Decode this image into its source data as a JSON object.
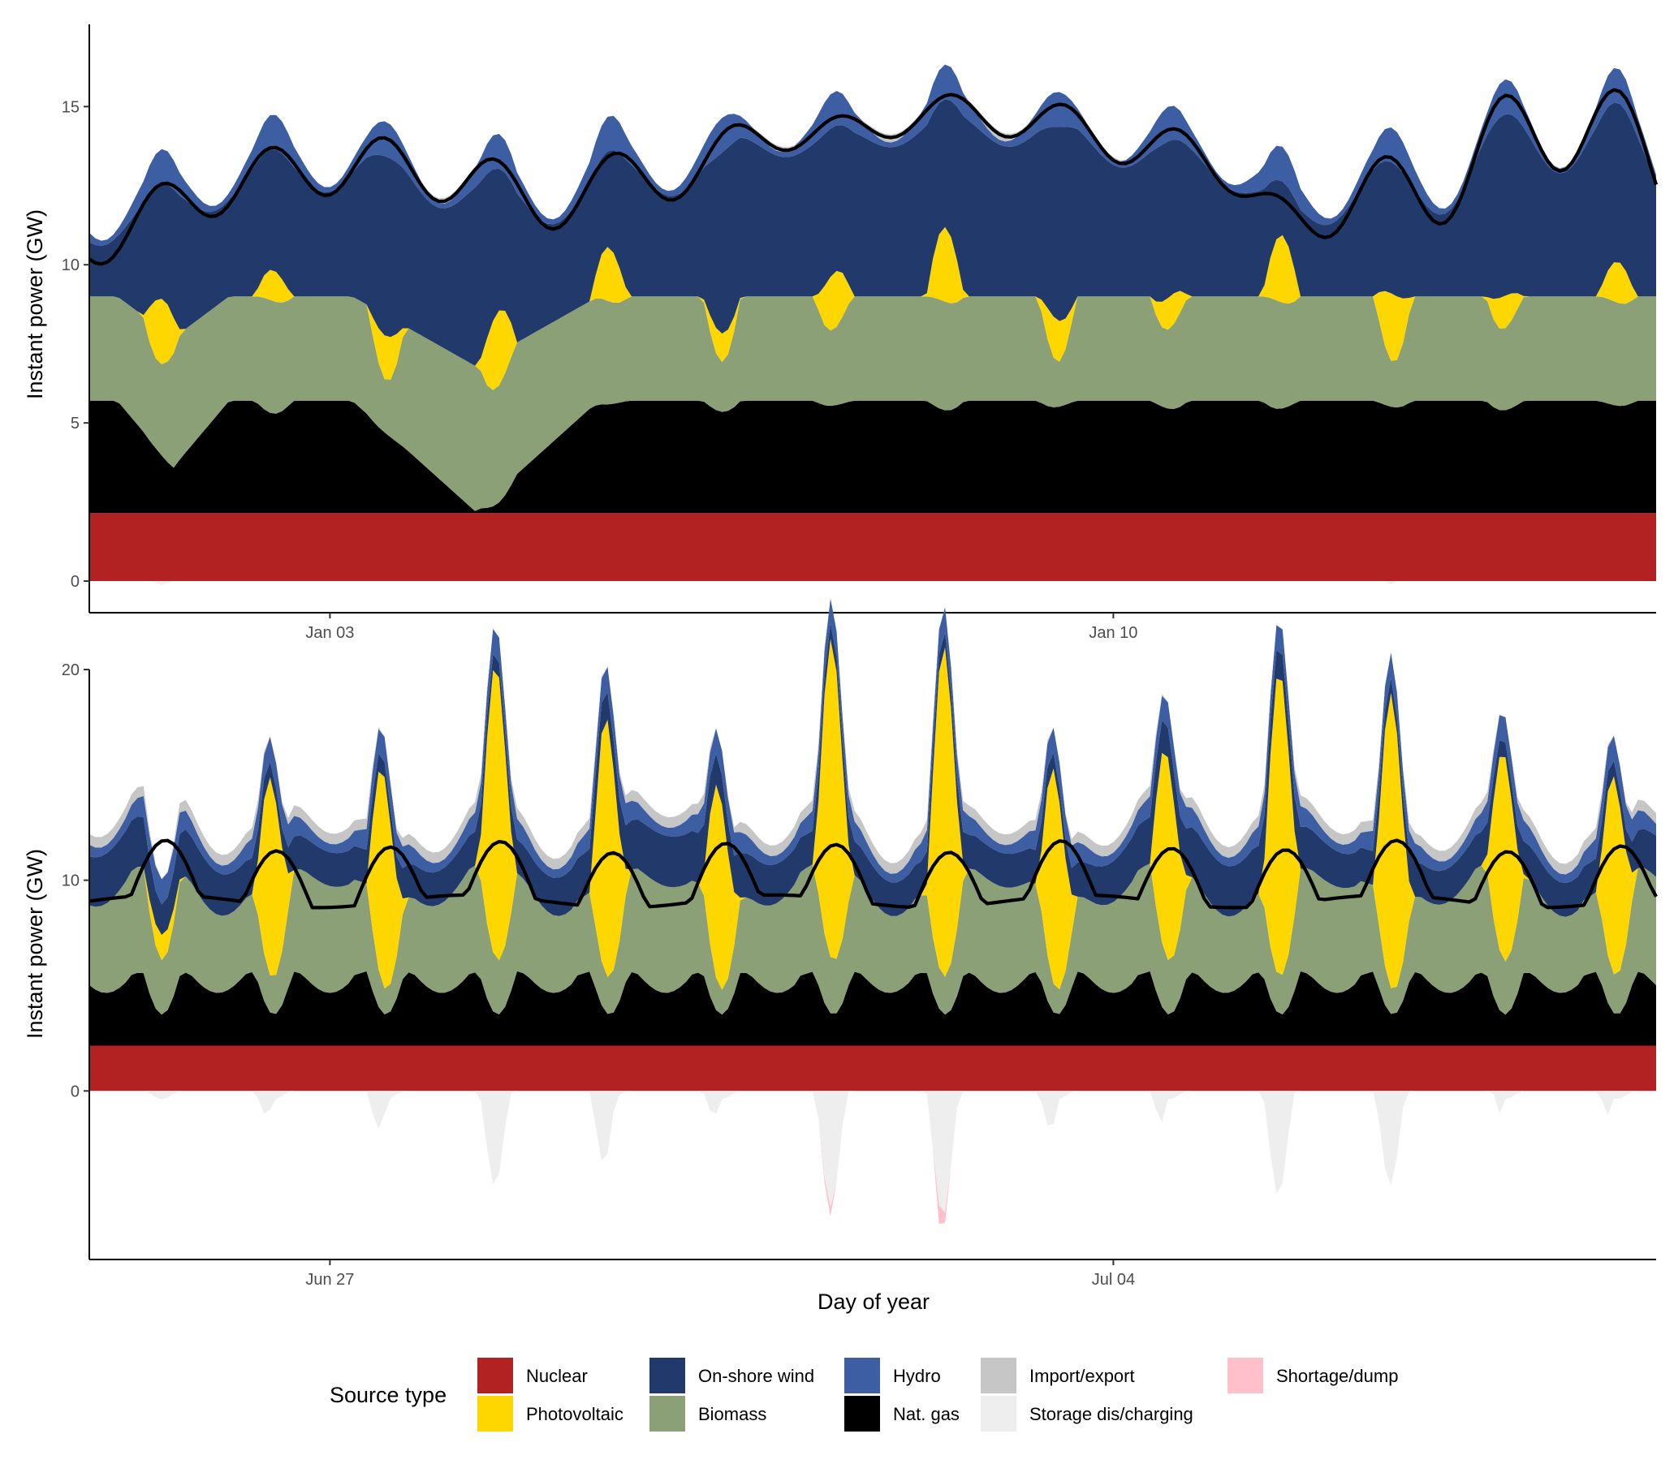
{
  "chart_data": [
    {
      "type": "area",
      "panel": "top",
      "title": "",
      "xlabel": "",
      "ylabel": "Instant power (GW)",
      "x_ticks": [
        {
          "label": "Jan 03",
          "day": 3.0
        },
        {
          "label": "Jan 10",
          "day": 10.0
        }
      ],
      "xlim": [
        0.85,
        14.85
      ],
      "y_ticks": [
        0,
        5,
        10,
        15
      ],
      "ylim": [
        -1.0,
        17.6
      ],
      "nuclear_gw": 2.15,
      "gas_cap_gw": 5.7,
      "biomass_cap_gw": 9.3,
      "events": [
        {
          "day": 1.3,
          "amp": 1.0,
          "w": 0.55
        },
        {
          "day": 2.25,
          "amp": 2.5,
          "w": 0.65
        },
        {
          "day": 3.25,
          "amp": 2.8,
          "w": 0.6
        },
        {
          "day": 4.2,
          "amp": 2.5,
          "w": 0.6
        },
        {
          "day": 5.1,
          "amp": 1.4,
          "w": 0.5
        },
        {
          "day": 5.85,
          "amp": 2.8,
          "w": 0.5
        },
        {
          "day": 6.9,
          "amp": 4.5,
          "w": 0.55
        },
        {
          "day": 7.95,
          "amp": 4.6,
          "w": 0.55
        },
        {
          "day": 8.9,
          "amp": 4.7,
          "w": 0.55
        },
        {
          "day": 9.85,
          "amp": 4.1,
          "w": 0.55
        },
        {
          "day": 10.85,
          "amp": 3.5,
          "w": 0.55
        },
        {
          "day": 12.3,
          "amp": 2.6,
          "w": 0.5
        },
        {
          "day": 13.5,
          "amp": 4.3,
          "w": 0.55
        },
        {
          "day": 14.5,
          "amp": 4.5,
          "w": 0.55
        }
      ]
    },
    {
      "type": "area",
      "panel": "bottom",
      "title": "",
      "xlabel": "Day of year",
      "ylabel": "Instant power (GW)",
      "x_ticks": [
        {
          "label": "Jun 27",
          "day": 177.0
        },
        {
          "label": "Jul 04",
          "day": 184.0
        }
      ],
      "xlim": [
        174.85,
        188.85
      ],
      "y_ticks": [
        0,
        10,
        20
      ],
      "ylim": [
        -8.0,
        20.0
      ],
      "nuclear_gw": 2.15,
      "gas_cap_gw": 5.7,
      "biomass_cap_gw": 9.3,
      "events": [
        {
          "day": 176.4,
          "amp": 2.6,
          "pv": 10.0,
          "w": 0.55
        },
        {
          "day": 177.4,
          "amp": 2.7,
          "pv": 11.0,
          "w": 0.55
        },
        {
          "day": 178.45,
          "amp": 2.2,
          "pv": 14.0,
          "w": 0.55
        },
        {
          "day": 179.4,
          "amp": 2.2,
          "pv": 13.5,
          "w": 0.55
        },
        {
          "day": 180.4,
          "amp": 2.1,
          "pv": 10.0,
          "w": 0.55
        },
        {
          "day": 181.45,
          "amp": 2.9,
          "pv": 15.3,
          "w": 0.55
        },
        {
          "day": 182.45,
          "amp": 2.9,
          "pv": 15.9,
          "w": 0.55
        },
        {
          "day": 183.4,
          "amp": 2.9,
          "pv": 11.0,
          "w": 0.55
        },
        {
          "day": 184.4,
          "amp": 2.9,
          "pv": 10.5,
          "w": 0.55
        },
        {
          "day": 185.45,
          "amp": 2.2,
          "pv": 14.6,
          "w": 0.55
        },
        {
          "day": 186.45,
          "amp": 2.2,
          "pv": 14.0,
          "w": 0.55
        },
        {
          "day": 187.45,
          "amp": 1.8,
          "pv": 9.5,
          "w": 0.55
        },
        {
          "day": 188.4,
          "amp": 2.0,
          "pv": 10.0,
          "w": 0.55
        }
      ]
    }
  ],
  "legend": {
    "title": "Source type",
    "items": [
      {
        "key": "nuclear",
        "label": "Nuclear",
        "color": "#b22222"
      },
      {
        "key": "pv",
        "label": "Photovoltaic",
        "color": "#ffd700"
      },
      {
        "key": "wind",
        "label": "On-shore wind",
        "color": "#22396b"
      },
      {
        "key": "biomass",
        "label": "Biomass",
        "color": "#8ca077"
      },
      {
        "key": "hydro",
        "label": "Hydro",
        "color": "#3d5ea3"
      },
      {
        "key": "gas",
        "label": "Nat. gas",
        "color": "#000000"
      },
      {
        "key": "imp",
        "label": "Import/export",
        "color": "#c6c6c6"
      },
      {
        "key": "stor",
        "label": "Storage dis/charging",
        "color": "#eeeeee"
      },
      {
        "key": "short",
        "label": "Shortage/dump",
        "color": "#ffc0cb"
      }
    ]
  },
  "demand_line_color": "#000000"
}
